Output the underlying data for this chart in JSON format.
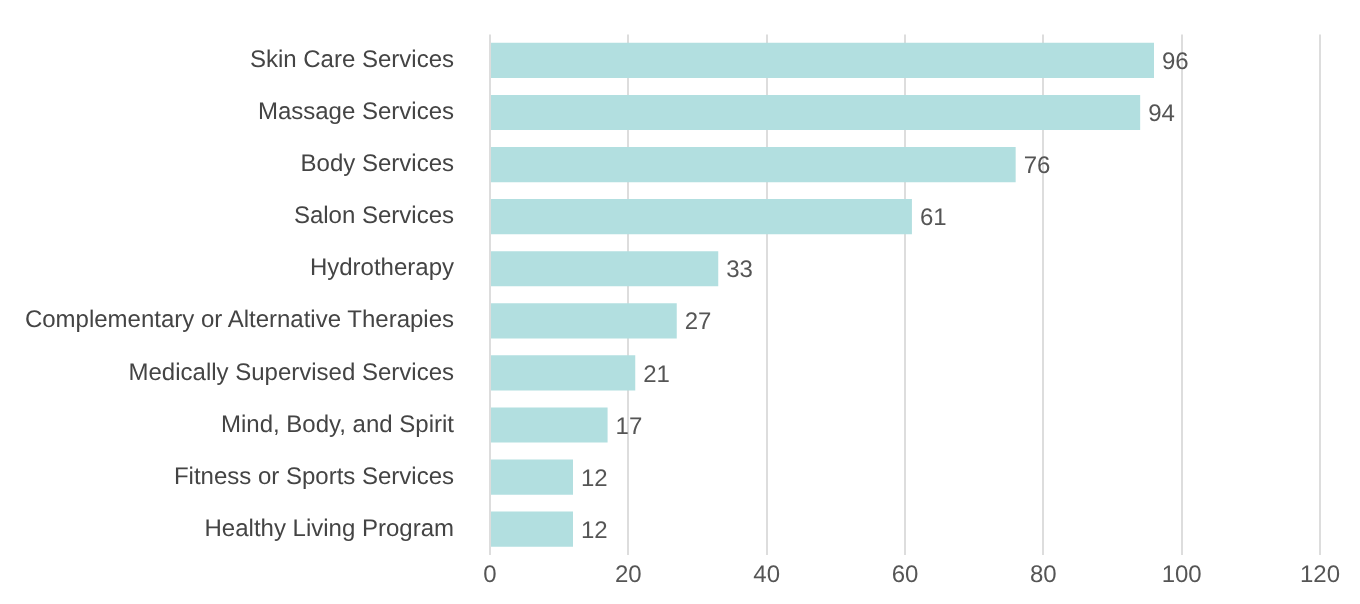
{
  "chart_data": {
    "type": "bar",
    "orientation": "horizontal",
    "categories": [
      "Skin Care Services",
      "Massage Services",
      "Body Services",
      "Salon Services",
      "Hydrotherapy",
      "Complementary or Alternative Therapies",
      "Medically Supervised Services",
      "Mind, Body, and Spirit",
      "Fitness or Sports Services",
      "Healthy Living Program"
    ],
    "values": [
      96,
      94,
      76,
      61,
      33,
      27,
      21,
      17,
      12,
      12
    ],
    "color": "#b2dfe0",
    "xlim": [
      0,
      120
    ],
    "xticks": [
      0,
      20,
      40,
      60,
      80,
      100,
      120
    ],
    "grid": "x",
    "data_labels": true,
    "legend": false
  }
}
